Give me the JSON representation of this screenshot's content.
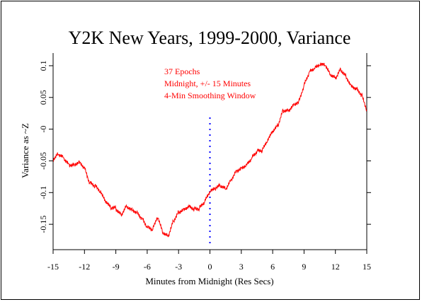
{
  "chart_data": {
    "type": "line",
    "title": "Y2K New Years, 1999-2000, Variance",
    "xlabel": "Minutes from Midnight (Res Secs)",
    "ylabel": "Variance as ~Z",
    "xlim": [
      -15,
      15
    ],
    "ylim": [
      -0.19,
      0.12
    ],
    "x_ticks": [
      -15,
      -12,
      -9,
      -6,
      -3,
      0,
      3,
      6,
      9,
      12,
      15
    ],
    "x_tick_labels": [
      "-15",
      "-12",
      "-9",
      "-6",
      "-3",
      "0",
      "3",
      "6",
      "9",
      "12",
      "15"
    ],
    "y_ticks": [
      0.1,
      0.05,
      0.0,
      -0.05,
      -0.1,
      -0.15
    ],
    "y_tick_labels": [
      "0.1",
      "0.05",
      "-0",
      "-0.05",
      "-0.1",
      "-0.15"
    ],
    "annotations": [
      "37 Epochs",
      "Midnight, +/- 15 Minutes",
      "4-Min Smoothing Window"
    ],
    "marker_line": {
      "x": 0,
      "y_range": [
        -0.18,
        0.025
      ],
      "color": "#0000ff",
      "style": "dotted"
    },
    "series": [
      {
        "color": "#ff0000",
        "x": [
          -15,
          -14.5,
          -14,
          -13.5,
          -13,
          -12.5,
          -12,
          -11.5,
          -11,
          -10.5,
          -10,
          -9.5,
          -9,
          -8.5,
          -8,
          -7.5,
          -7,
          -6.5,
          -6,
          -5.5,
          -5,
          -4.5,
          -4,
          -3.5,
          -3,
          -2.5,
          -2,
          -1.5,
          -1,
          -0.5,
          0,
          0.5,
          1,
          1.5,
          2,
          2.5,
          3,
          3.5,
          4,
          4.5,
          5,
          5.5,
          6,
          6.5,
          7,
          7.5,
          8,
          8.5,
          9,
          9.5,
          10,
          10.5,
          11,
          11.5,
          12,
          12.5,
          13,
          13.5,
          14,
          14.5,
          15
        ],
        "y": [
          -0.05,
          -0.04,
          -0.045,
          -0.055,
          -0.055,
          -0.05,
          -0.06,
          -0.085,
          -0.09,
          -0.1,
          -0.115,
          -0.125,
          -0.125,
          -0.135,
          -0.12,
          -0.125,
          -0.13,
          -0.14,
          -0.155,
          -0.16,
          -0.14,
          -0.165,
          -0.17,
          -0.145,
          -0.13,
          -0.125,
          -0.12,
          -0.125,
          -0.125,
          -0.115,
          -0.1,
          -0.095,
          -0.09,
          -0.095,
          -0.08,
          -0.065,
          -0.06,
          -0.055,
          -0.045,
          -0.035,
          -0.035,
          -0.02,
          -0.005,
          0.005,
          0.03,
          0.03,
          0.04,
          0.045,
          0.07,
          0.09,
          0.095,
          0.1,
          0.1,
          0.085,
          0.08,
          0.095,
          0.085,
          0.07,
          0.065,
          0.055,
          0.03
        ]
      }
    ]
  }
}
